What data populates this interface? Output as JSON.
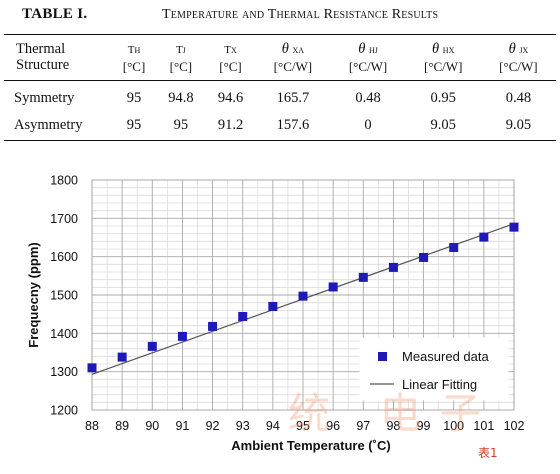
{
  "table": {
    "label": "TABLE I.",
    "title": "Temperature and Thermal Resistance Results",
    "header_first": [
      "Thermal",
      "Structure"
    ],
    "columns": [
      {
        "sym": "T",
        "sub": "H",
        "unit": "[°C]",
        "theta": false
      },
      {
        "sym": "T",
        "sub": "J",
        "unit": "[°C]",
        "theta": false
      },
      {
        "sym": "T",
        "sub": "X",
        "unit": "[°C]",
        "theta": false
      },
      {
        "sym": "θ",
        "sub": "XA",
        "unit": "[°C/W]",
        "theta": true
      },
      {
        "sym": "θ",
        "sub": "HJ",
        "unit": "[°C/W]",
        "theta": true
      },
      {
        "sym": "θ",
        "sub": "HX",
        "unit": "[°C/W]",
        "theta": true
      },
      {
        "sym": "θ",
        "sub": "JX",
        "unit": "[°C/W]",
        "theta": true
      }
    ],
    "rows": [
      {
        "name": "Symmetry",
        "values": [
          "95",
          "94.8",
          "94.6",
          "165.7",
          "0.48",
          "0.95",
          "0.48"
        ]
      },
      {
        "name": "Asymmetry",
        "values": [
          "95",
          "95",
          "91.2",
          "157.6",
          "0",
          "9.05",
          "9.05"
        ]
      }
    ]
  },
  "chart_data": {
    "type": "scatter",
    "xlabel": "Ambient Temperature (˚C)",
    "ylabel": "Frequecny (ppm)",
    "xlim": [
      88,
      102
    ],
    "ylim": [
      1200,
      1800
    ],
    "xticks": [
      "88",
      "89",
      "90",
      "91",
      "92",
      "93",
      "94",
      "95",
      "96",
      "97",
      "98",
      "99",
      "100",
      "101",
      "102"
    ],
    "yticks": [
      "1200",
      "1300",
      "1400",
      "1500",
      "1600",
      "1700",
      "1800"
    ],
    "grid": true,
    "legend_position": "bottom-right",
    "series": [
      {
        "name": "Measured data",
        "kind": "marker",
        "color": "#1d1ab8",
        "x": [
          88,
          89,
          90,
          91,
          92,
          93,
          94,
          95,
          96,
          97,
          98,
          99,
          100,
          101,
          102
        ],
        "y": [
          1310,
          1338,
          1366,
          1392,
          1418,
          1444,
          1470,
          1497,
          1521,
          1546,
          1572,
          1598,
          1624,
          1651,
          1677
        ]
      },
      {
        "name": "Linear Fitting",
        "kind": "line",
        "color": "#555555",
        "x": [
          88,
          102
        ],
        "y": [
          1293,
          1686
        ]
      }
    ]
  },
  "watermark": {
    "text": "统 电子",
    "tag": "表1"
  }
}
